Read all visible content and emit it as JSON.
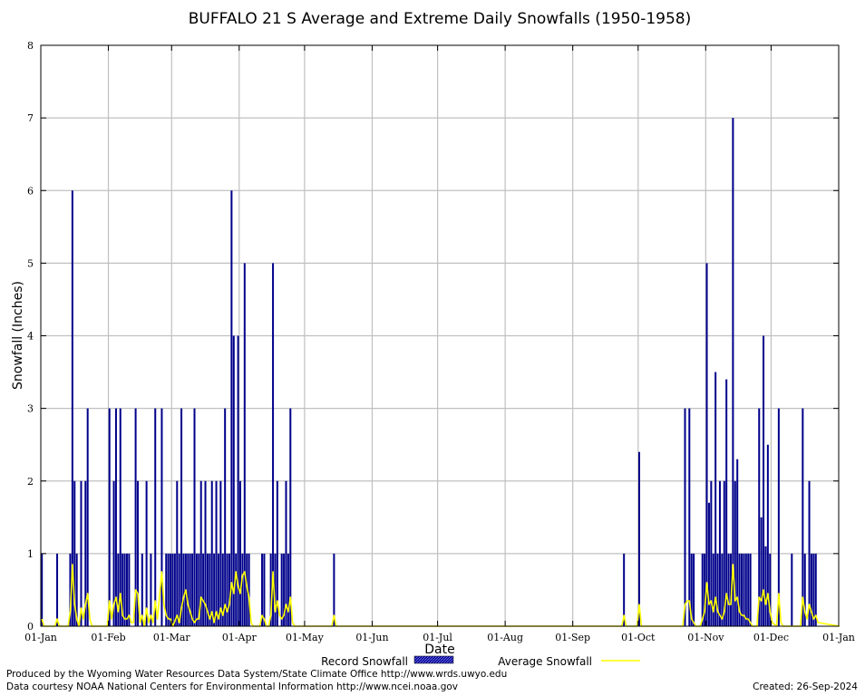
{
  "chart_data": {
    "type": "bar",
    "title": "BUFFALO 21 S Average and Extreme Daily Snowfalls (1950-1958)",
    "xlabel": "Date",
    "ylabel": "Snowfall (Inches)",
    "ylim": [
      0,
      8
    ],
    "yticks": [
      "0",
      "1",
      "2",
      "3",
      "4",
      "5",
      "6",
      "7",
      "8"
    ],
    "xlim_days": [
      0,
      366
    ],
    "xticks": [
      {
        "label": "01-Jan",
        "day": 0
      },
      {
        "label": "01-Feb",
        "day": 31
      },
      {
        "label": "01-Mar",
        "day": 60
      },
      {
        "label": "01-Apr",
        "day": 91
      },
      {
        "label": "01-May",
        "day": 121
      },
      {
        "label": "01-Jun",
        "day": 152
      },
      {
        "label": "01-Jul",
        "day": 182
      },
      {
        "label": "01-Aug",
        "day": 213
      },
      {
        "label": "01-Sep",
        "day": 244
      },
      {
        "label": "01-Oct",
        "day": 274
      },
      {
        "label": "01-Nov",
        "day": 305
      },
      {
        "label": "01-Dec",
        "day": 335
      },
      {
        "label": "01-Jan",
        "day": 366
      }
    ],
    "grid": true,
    "legend": {
      "position": "bottom",
      "record_label": "Record Snowfall",
      "average_label": "Average Snowfall"
    },
    "colors": {
      "record": "#00008b",
      "average": "#ffff00",
      "grid": "#c0c0c0"
    },
    "series": [
      {
        "name": "Record Snowfall",
        "style": "bars",
        "points": [
          [
            0,
            1
          ],
          [
            7,
            1
          ],
          [
            13,
            1
          ],
          [
            14,
            6
          ],
          [
            15,
            2
          ],
          [
            16,
            1
          ],
          [
            18,
            2
          ],
          [
            20,
            2
          ],
          [
            21,
            3
          ],
          [
            31,
            3
          ],
          [
            33,
            2
          ],
          [
            34,
            3
          ],
          [
            35,
            1
          ],
          [
            36,
            3
          ],
          [
            37,
            1
          ],
          [
            38,
            1
          ],
          [
            39,
            1
          ],
          [
            40,
            1
          ],
          [
            43,
            3
          ],
          [
            44,
            2
          ],
          [
            46,
            1
          ],
          [
            48,
            2
          ],
          [
            50,
            1
          ],
          [
            52,
            3
          ],
          [
            55,
            3
          ],
          [
            57,
            1
          ],
          [
            58,
            1
          ],
          [
            59,
            1
          ],
          [
            60,
            1
          ],
          [
            61,
            1
          ],
          [
            62,
            2
          ],
          [
            63,
            1
          ],
          [
            64,
            3
          ],
          [
            65,
            1
          ],
          [
            66,
            1
          ],
          [
            67,
            1
          ],
          [
            68,
            1
          ],
          [
            69,
            1
          ],
          [
            70,
            3
          ],
          [
            71,
            1
          ],
          [
            72,
            1
          ],
          [
            73,
            2
          ],
          [
            74,
            1
          ],
          [
            75,
            2
          ],
          [
            76,
            1
          ],
          [
            77,
            1
          ],
          [
            78,
            2
          ],
          [
            79,
            1
          ],
          [
            80,
            2
          ],
          [
            81,
            1
          ],
          [
            82,
            2
          ],
          [
            83,
            1
          ],
          [
            84,
            3
          ],
          [
            85,
            1
          ],
          [
            86,
            1
          ],
          [
            87,
            6
          ],
          [
            88,
            4
          ],
          [
            89,
            1
          ],
          [
            90,
            4
          ],
          [
            91,
            2
          ],
          [
            92,
            1
          ],
          [
            93,
            5
          ],
          [
            94,
            1
          ],
          [
            95,
            1
          ],
          [
            101,
            1
          ],
          [
            102,
            1
          ],
          [
            105,
            1
          ],
          [
            106,
            5
          ],
          [
            107,
            1
          ],
          [
            108,
            2
          ],
          [
            110,
            1
          ],
          [
            111,
            1
          ],
          [
            112,
            2
          ],
          [
            113,
            1
          ],
          [
            114,
            3
          ],
          [
            134,
            1
          ],
          [
            267,
            1
          ],
          [
            274,
            2.4
          ],
          [
            295,
            3
          ],
          [
            297,
            3
          ],
          [
            298,
            1
          ],
          [
            299,
            1
          ],
          [
            303,
            1
          ],
          [
            304,
            1
          ],
          [
            305,
            5
          ],
          [
            306,
            1.7
          ],
          [
            307,
            2
          ],
          [
            308,
            1
          ],
          [
            309,
            3.5
          ],
          [
            310,
            1
          ],
          [
            311,
            2
          ],
          [
            312,
            1
          ],
          [
            313,
            2
          ],
          [
            314,
            3.4
          ],
          [
            315,
            1
          ],
          [
            316,
            1
          ],
          [
            317,
            7
          ],
          [
            318,
            2
          ],
          [
            319,
            2.3
          ],
          [
            320,
            1
          ],
          [
            321,
            1
          ],
          [
            322,
            1
          ],
          [
            323,
            1
          ],
          [
            324,
            1
          ],
          [
            325,
            1
          ],
          [
            329,
            3
          ],
          [
            330,
            1.5
          ],
          [
            331,
            4
          ],
          [
            332,
            1.1
          ],
          [
            333,
            2.5
          ],
          [
            334,
            1
          ],
          [
            338,
            3
          ],
          [
            344,
            1
          ],
          [
            349,
            3
          ],
          [
            350,
            1
          ],
          [
            352,
            2
          ],
          [
            353,
            1
          ],
          [
            354,
            1
          ],
          [
            355,
            1
          ]
        ]
      },
      {
        "name": "Average Snowfall",
        "style": "line",
        "points": [
          [
            0,
            0.1
          ],
          [
            1,
            0
          ],
          [
            6,
            0
          ],
          [
            7,
            0.1
          ],
          [
            8,
            0
          ],
          [
            12,
            0
          ],
          [
            13,
            0.2
          ],
          [
            14,
            0.85
          ],
          [
            15,
            0.3
          ],
          [
            16,
            0.1
          ],
          [
            17,
            0
          ],
          [
            18,
            0.25
          ],
          [
            19,
            0.1
          ],
          [
            20,
            0.3
          ],
          [
            21,
            0.45
          ],
          [
            22,
            0.1
          ],
          [
            23,
            0
          ],
          [
            30,
            0
          ],
          [
            31,
            0.35
          ],
          [
            32,
            0.1
          ],
          [
            33,
            0.3
          ],
          [
            34,
            0.4
          ],
          [
            35,
            0.2
          ],
          [
            36,
            0.45
          ],
          [
            37,
            0.15
          ],
          [
            38,
            0.1
          ],
          [
            39,
            0.1
          ],
          [
            40,
            0.15
          ],
          [
            41,
            0.05
          ],
          [
            42,
            0.05
          ],
          [
            43,
            0.5
          ],
          [
            44,
            0.45
          ],
          [
            45,
            0.05
          ],
          [
            46,
            0.15
          ],
          [
            47,
            0
          ],
          [
            48,
            0.25
          ],
          [
            49,
            0.05
          ],
          [
            50,
            0.15
          ],
          [
            51,
            0.05
          ],
          [
            52,
            0.35
          ],
          [
            53,
            0.1
          ],
          [
            55,
            0.75
          ],
          [
            56,
            0.3
          ],
          [
            57,
            0.15
          ],
          [
            58,
            0.1
          ],
          [
            59,
            0.1
          ],
          [
            60,
            0
          ],
          [
            62,
            0.15
          ],
          [
            63,
            0.05
          ],
          [
            64,
            0.25
          ],
          [
            65,
            0.4
          ],
          [
            66,
            0.5
          ],
          [
            67,
            0.3
          ],
          [
            68,
            0.2
          ],
          [
            69,
            0.1
          ],
          [
            70,
            0.05
          ],
          [
            71,
            0.1
          ],
          [
            72,
            0.1
          ],
          [
            73,
            0.4
          ],
          [
            74,
            0.35
          ],
          [
            75,
            0.3
          ],
          [
            76,
            0.2
          ],
          [
            77,
            0.1
          ],
          [
            78,
            0.2
          ],
          [
            79,
            0.05
          ],
          [
            80,
            0.2
          ],
          [
            81,
            0.1
          ],
          [
            82,
            0.25
          ],
          [
            83,
            0.15
          ],
          [
            84,
            0.3
          ],
          [
            85,
            0.2
          ],
          [
            86,
            0.3
          ],
          [
            87,
            0.6
          ],
          [
            88,
            0.45
          ],
          [
            89,
            0.75
          ],
          [
            90,
            0.55
          ],
          [
            91,
            0.45
          ],
          [
            92,
            0.7
          ],
          [
            93,
            0.75
          ],
          [
            94,
            0.55
          ],
          [
            95,
            0.4
          ],
          [
            96,
            0.05
          ],
          [
            97,
            0
          ],
          [
            100,
            0
          ],
          [
            101,
            0.15
          ],
          [
            102,
            0.1
          ],
          [
            103,
            0
          ],
          [
            104,
            0
          ],
          [
            105,
            0.15
          ],
          [
            106,
            0.75
          ],
          [
            107,
            0.2
          ],
          [
            108,
            0.35
          ],
          [
            109,
            0.15
          ],
          [
            110,
            0.1
          ],
          [
            111,
            0.15
          ],
          [
            112,
            0.3
          ],
          [
            113,
            0.2
          ],
          [
            114,
            0.4
          ],
          [
            115,
            0.05
          ],
          [
            116,
            0
          ],
          [
            133,
            0
          ],
          [
            134,
            0.15
          ],
          [
            135,
            0
          ],
          [
            266,
            0
          ],
          [
            267,
            0.15
          ],
          [
            268,
            0
          ],
          [
            273,
            0
          ],
          [
            274,
            0.3
          ],
          [
            275,
            0
          ],
          [
            294,
            0
          ],
          [
            295,
            0.3
          ],
          [
            296,
            0.35
          ],
          [
            297,
            0.35
          ],
          [
            298,
            0.1
          ],
          [
            299,
            0.05
          ],
          [
            300,
            0
          ],
          [
            302,
            0
          ],
          [
            303,
            0.1
          ],
          [
            304,
            0.2
          ],
          [
            305,
            0.6
          ],
          [
            306,
            0.3
          ],
          [
            307,
            0.35
          ],
          [
            308,
            0.2
          ],
          [
            309,
            0.4
          ],
          [
            310,
            0.2
          ],
          [
            311,
            0.15
          ],
          [
            312,
            0.1
          ],
          [
            313,
            0.2
          ],
          [
            314,
            0.45
          ],
          [
            315,
            0.3
          ],
          [
            316,
            0.3
          ],
          [
            317,
            0.85
          ],
          [
            318,
            0.35
          ],
          [
            319,
            0.4
          ],
          [
            320,
            0.2
          ],
          [
            321,
            0.15
          ],
          [
            322,
            0.15
          ],
          [
            323,
            0.1
          ],
          [
            324,
            0.1
          ],
          [
            325,
            0.05
          ],
          [
            326,
            0
          ],
          [
            328,
            0
          ],
          [
            329,
            0.4
          ],
          [
            330,
            0.35
          ],
          [
            331,
            0.5
          ],
          [
            332,
            0.3
          ],
          [
            333,
            0.45
          ],
          [
            334,
            0.2
          ],
          [
            335,
            0.05
          ],
          [
            337,
            0
          ],
          [
            338,
            0.45
          ],
          [
            339,
            0.05
          ],
          [
            340,
            0
          ],
          [
            348,
            0
          ],
          [
            349,
            0.4
          ],
          [
            350,
            0.2
          ],
          [
            351,
            0.1
          ],
          [
            352,
            0.3
          ],
          [
            353,
            0.2
          ],
          [
            354,
            0.1
          ],
          [
            355,
            0.15
          ],
          [
            356,
            0.05
          ],
          [
            366,
            0
          ]
        ]
      }
    ]
  },
  "footer": {
    "produced_by": "Produced by the Wyoming Water Resources Data System/State Climate Office http://www.wrds.uwyo.edu",
    "courtesy": "Data courtesy NOAA National Centers for Environmental Information http://www.ncei.noaa.gov",
    "created": "Created:  26-Sep-2024"
  }
}
